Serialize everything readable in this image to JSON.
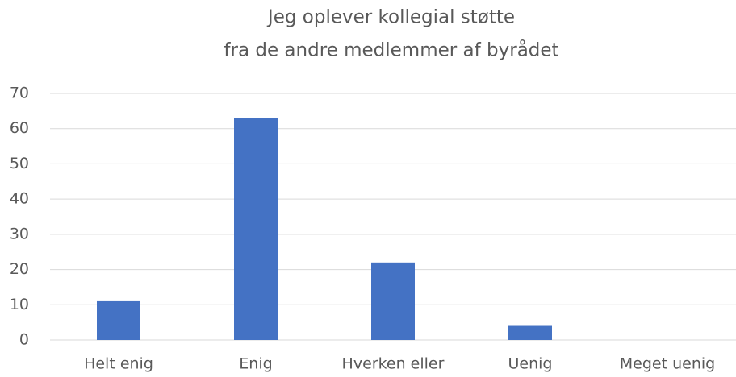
{
  "chart_data": {
    "type": "bar",
    "title": [
      "Jeg oplever kollegial støtte",
      "fra de andre medlemmer af byrådet"
    ],
    "categories": [
      "Helt enig",
      "Enig",
      "Hverken eller",
      "Uenig",
      "Meget uenig"
    ],
    "values": [
      11,
      63,
      22,
      4,
      0
    ],
    "color": "#4472c4",
    "ylim": [
      0,
      70
    ],
    "yticks": [
      0,
      10,
      20,
      30,
      40,
      50,
      60,
      70
    ],
    "grid": true
  }
}
